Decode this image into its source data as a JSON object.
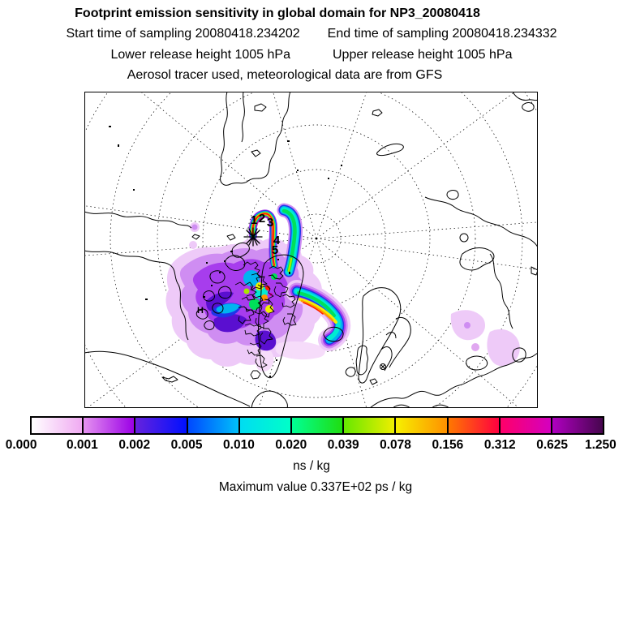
{
  "header": {
    "title": "Footprint emission sensitivity in global domain for NP3_20080418",
    "start_time": "Start time of sampling 20080418.234202",
    "end_time": "End time of sampling 20080418.234332",
    "lower_release": "Lower release height 1005 hPa",
    "upper_release": "Upper release height 1005 hPa",
    "tracer_line": "Aerosol tracer used, meteorological data are from GFS"
  },
  "map": {
    "trajectory_labels": [
      "1",
      "2",
      "3",
      "4",
      "5"
    ],
    "contour_label": "H"
  },
  "colorbar": {
    "tick_labels": [
      "0.000",
      "0.001",
      "0.002",
      "0.005",
      "0.010",
      "0.020",
      "0.039",
      "0.078",
      "0.156",
      "0.312",
      "0.625",
      "1.250"
    ],
    "scale_values": [
      0.0,
      0.001,
      0.002,
      0.005,
      0.01,
      0.02,
      0.039,
      0.078,
      0.156,
      0.312,
      0.625,
      1.25
    ],
    "unit": "ns / kg",
    "segments": [
      {
        "from": "#ffffff",
        "to": "#f0aaf2"
      },
      {
        "from": "#e592f0",
        "to": "#9b00e6"
      },
      {
        "from": "#6622dd",
        "to": "#0010ff"
      },
      {
        "from": "#0048ff",
        "to": "#00c0fa"
      },
      {
        "from": "#00dcf2",
        "to": "#00ffc8"
      },
      {
        "from": "#00ff96",
        "to": "#20dd10"
      },
      {
        "from": "#66e800",
        "to": "#eeee00"
      },
      {
        "from": "#f6f000",
        "to": "#ff9000"
      },
      {
        "from": "#ff7800",
        "to": "#ff0040"
      },
      {
        "from": "#ff0068",
        "to": "#d400c0"
      },
      {
        "from": "#b000c0",
        "to": "#46064e"
      }
    ]
  },
  "footer": {
    "max_value": "Maximum value  0.337E+02 ps / kg"
  },
  "palette": {
    "pale_violet": "#eecaf8",
    "light_purple": "#cf8df2",
    "purple": "#a73ded",
    "indigo": "#5a0fd0",
    "blue": "#1f35e8",
    "azure": "#00b4f0",
    "cyan": "#00ecd2",
    "green": "#00e05a",
    "yellow_green": "#a8e800",
    "yellow": "#f0f000",
    "orange": "#ff9800",
    "red": "#ff1e00",
    "crimson": "#ff0048",
    "magenta": "#e000b0"
  }
}
